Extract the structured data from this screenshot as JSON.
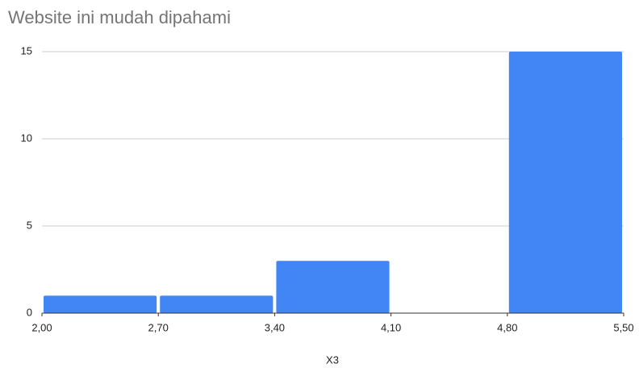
{
  "chart_data": {
    "type": "histogram",
    "title": "Website ini mudah dipahami",
    "x_label": "X3",
    "bins": [
      2.0,
      2.7,
      3.4,
      4.1,
      4.8,
      5.5
    ],
    "counts": [
      1,
      1,
      3,
      0,
      15
    ],
    "color": "#4285f4",
    "xlim": [
      2.0,
      5.5
    ],
    "xticks": [
      {
        "value": 2.0,
        "label": "2,00"
      },
      {
        "value": 2.7,
        "label": "2,70"
      },
      {
        "value": 3.4,
        "label": "3,40"
      },
      {
        "value": 4.1,
        "label": "4,10"
      },
      {
        "value": 4.8,
        "label": "4,80"
      },
      {
        "value": 5.5,
        "label": "5,50"
      }
    ],
    "ylim": [
      0,
      15
    ],
    "yticks": [
      0,
      5,
      10,
      15
    ],
    "grid": true
  }
}
